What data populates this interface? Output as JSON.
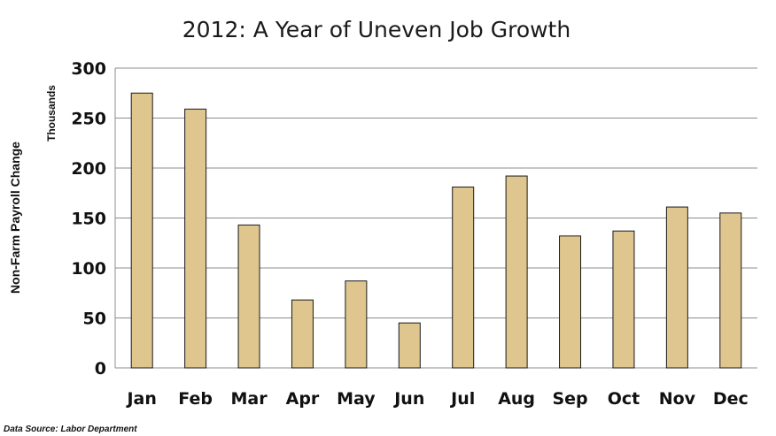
{
  "chart_data": {
    "type": "bar",
    "title": "2012: A Year of Uneven Job Growth",
    "ylabel": "Non-Farm Payroll Change",
    "yunits": "Thousands",
    "categories": [
      "Jan",
      "Feb",
      "Mar",
      "Apr",
      "May",
      "Jun",
      "Jul",
      "Aug",
      "Sep",
      "Oct",
      "Nov",
      "Dec"
    ],
    "values": [
      275,
      259,
      143,
      68,
      87,
      45,
      181,
      192,
      132,
      137,
      161,
      155
    ],
    "ylim": [
      0,
      300
    ],
    "yticks": [
      "0",
      "50",
      "100",
      "150",
      "200",
      "250",
      "300"
    ],
    "grid": true,
    "legend": "none",
    "source": "Data Source: Labor Department",
    "colors": {
      "bar_fill": "#dfc68e",
      "bar_stroke": "#1a1a1a",
      "grid": "#8c8c8c"
    }
  }
}
